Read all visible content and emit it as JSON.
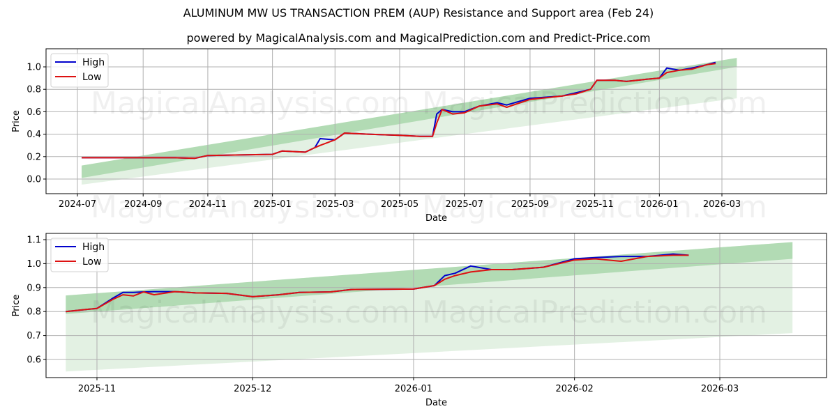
{
  "header": {
    "title": "ALUMINUM MW US TRANSACTION PREM (AUP) Resistance and Support area (Feb 24)",
    "subtitle": "powered by MagicalAnalysis.com and MagicalPrediction.com and Predict-Price.com"
  },
  "watermarks": [
    "MagicalAnalysis.com",
    "MagicalPrediction.com"
  ],
  "colors": {
    "high": "#0000cc",
    "low": "#dd1111",
    "band_dark": "#a5d6a7",
    "band_light": "#d9ecd9",
    "grid": "#b0b0b0"
  },
  "chart_data": [
    {
      "type": "line",
      "title": "",
      "xlabel": "Date",
      "ylabel": "Price",
      "x_ticks": [
        "2024-07",
        "2024-09",
        "2024-11",
        "2025-01",
        "2025-03",
        "2025-05",
        "2025-07",
        "2025-09",
        "2025-11",
        "2026-01",
        "2026-03"
      ],
      "y_ticks": [
        "0.0",
        "0.2",
        "0.4",
        "0.6",
        "0.8",
        "1.0"
      ],
      "ylim": [
        -0.12,
        1.15
      ],
      "grid": true,
      "legend": {
        "position": "upper left",
        "entries": [
          "High",
          "Low"
        ]
      },
      "x": [
        "2024-07-05",
        "2024-08-01",
        "2024-09-01",
        "2024-10-01",
        "2024-10-20",
        "2024-11-01",
        "2024-12-01",
        "2025-01-01",
        "2025-01-10",
        "2025-02-01",
        "2025-02-10",
        "2025-02-15",
        "2025-03-01",
        "2025-03-10",
        "2025-04-01",
        "2025-05-01",
        "2025-05-20",
        "2025-06-01",
        "2025-06-05",
        "2025-06-10",
        "2025-06-20",
        "2025-07-01",
        "2025-07-15",
        "2025-08-01",
        "2025-08-10",
        "2025-09-01",
        "2025-10-01",
        "2025-10-15",
        "2025-10-28",
        "2025-11-03",
        "2025-11-20",
        "2025-12-01",
        "2025-12-20",
        "2026-01-01",
        "2026-01-08",
        "2026-01-20",
        "2026-02-01",
        "2026-02-15",
        "2026-02-23"
      ],
      "series": [
        {
          "name": "High",
          "values": [
            0.19,
            0.19,
            0.19,
            0.19,
            0.185,
            0.21,
            0.215,
            0.22,
            0.25,
            0.24,
            0.28,
            0.36,
            0.35,
            0.41,
            0.4,
            0.39,
            0.38,
            0.38,
            0.58,
            0.62,
            0.6,
            0.6,
            0.65,
            0.68,
            0.66,
            0.72,
            0.74,
            0.77,
            0.8,
            0.88,
            0.88,
            0.87,
            0.89,
            0.9,
            0.99,
            0.97,
            0.99,
            1.02,
            1.04
          ]
        },
        {
          "name": "Low",
          "values": [
            0.19,
            0.19,
            0.19,
            0.19,
            0.185,
            0.21,
            0.215,
            0.22,
            0.25,
            0.24,
            0.28,
            0.3,
            0.35,
            0.41,
            0.4,
            0.39,
            0.38,
            0.38,
            0.5,
            0.62,
            0.58,
            0.59,
            0.65,
            0.67,
            0.64,
            0.71,
            0.74,
            0.76,
            0.8,
            0.88,
            0.88,
            0.87,
            0.89,
            0.9,
            0.95,
            0.97,
            0.98,
            1.02,
            1.03
          ]
        }
      ],
      "bands": [
        {
          "name": "resistance-support-dark",
          "start": {
            "x": "2024-07-05",
            "low": 0.01,
            "high": 0.12
          },
          "end": {
            "x": "2026-03-15",
            "low": 1.0,
            "high": 1.08
          }
        },
        {
          "name": "resistance-support-light",
          "start": {
            "x": "2024-07-05",
            "low": -0.05,
            "high": 0.12
          },
          "end": {
            "x": "2026-03-15",
            "low": 0.72,
            "high": 1.08
          }
        }
      ]
    },
    {
      "type": "line",
      "title": "",
      "xlabel": "Date",
      "ylabel": "Price",
      "x_ticks": [
        "2025-11",
        "2025-12",
        "2026-01",
        "2026-02",
        "2026-03"
      ],
      "y_ticks": [
        "0.6",
        "0.7",
        "0.8",
        "0.9",
        "1.0",
        "1.1"
      ],
      "ylim": [
        0.52,
        1.12
      ],
      "grid": true,
      "legend": {
        "position": "upper left",
        "entries": [
          "High",
          "Low"
        ]
      },
      "x": [
        "2025-10-26",
        "2025-11-01",
        "2025-11-04",
        "2025-11-06",
        "2025-11-08",
        "2025-11-10",
        "2025-11-12",
        "2025-11-16",
        "2025-11-20",
        "2025-11-26",
        "2025-12-01",
        "2025-12-06",
        "2025-12-10",
        "2025-12-16",
        "2025-12-20",
        "2025-12-26",
        "2026-01-01",
        "2026-01-05",
        "2026-01-07",
        "2026-01-09",
        "2026-01-12",
        "2026-01-16",
        "2026-01-20",
        "2026-01-26",
        "2026-02-01",
        "2026-02-05",
        "2026-02-10",
        "2026-02-15",
        "2026-02-20",
        "2026-02-23"
      ],
      "series": [
        {
          "name": "High",
          "values": [
            0.8,
            0.813,
            0.855,
            0.88,
            0.88,
            0.882,
            0.883,
            0.883,
            0.878,
            0.876,
            0.862,
            0.87,
            0.88,
            0.882,
            0.892,
            0.893,
            0.894,
            0.908,
            0.95,
            0.96,
            0.99,
            0.975,
            0.975,
            0.985,
            1.02,
            1.025,
            1.03,
            1.03,
            1.04,
            1.035
          ]
        },
        {
          "name": "Low",
          "values": [
            0.8,
            0.813,
            0.85,
            0.87,
            0.865,
            0.882,
            0.87,
            0.883,
            0.878,
            0.876,
            0.862,
            0.87,
            0.88,
            0.882,
            0.892,
            0.893,
            0.894,
            0.908,
            0.935,
            0.95,
            0.965,
            0.975,
            0.975,
            0.985,
            1.015,
            1.02,
            1.01,
            1.03,
            1.035,
            1.035
          ]
        }
      ],
      "bands": [
        {
          "name": "resistance-support-dark",
          "start": {
            "x": "2025-10-26",
            "low": 0.79,
            "high": 0.867
          },
          "end": {
            "x": "2026-03-15",
            "low": 1.02,
            "high": 1.09
          }
        },
        {
          "name": "resistance-support-light",
          "start": {
            "x": "2025-10-26",
            "low": 0.55,
            "high": 0.867
          },
          "end": {
            "x": "2026-03-15",
            "low": 0.71,
            "high": 1.09
          }
        }
      ]
    }
  ]
}
